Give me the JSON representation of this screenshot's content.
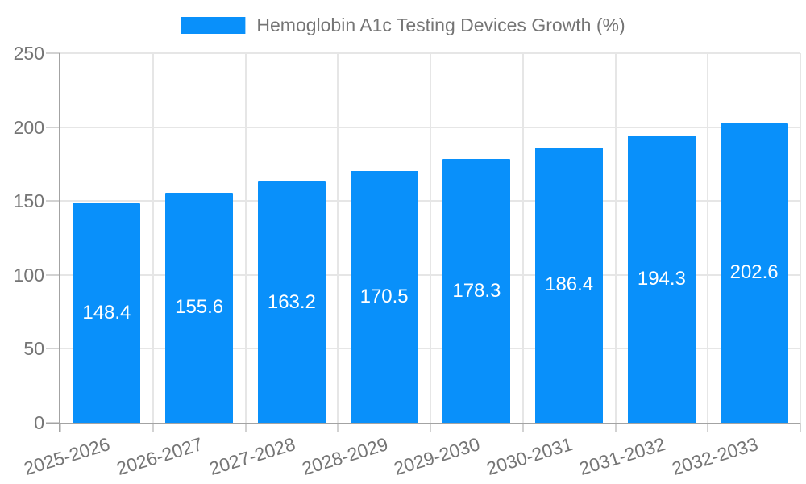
{
  "chart_data": {
    "type": "bar",
    "title": "Hemoglobin A1c Testing Devices Growth (%)",
    "categories": [
      "2025-2026",
      "2026-2027",
      "2027-2028",
      "2028-2029",
      "2029-2030",
      "2030-2031",
      "2031-2032",
      "2032-2033"
    ],
    "values": [
      148.4,
      155.6,
      163.2,
      170.5,
      178.3,
      186.4,
      194.3,
      202.6
    ],
    "value_label_decimals": 1,
    "xlabel": "",
    "ylabel": "",
    "ylim": [
      0,
      250
    ],
    "yticks": [
      0,
      50,
      100,
      150,
      200,
      250
    ],
    "grid": true,
    "legend_position": "top",
    "x_tick_rotation_deg": -17,
    "colors": {
      "bar": "#0990fa",
      "value_label": "#ffffff",
      "axis_text": "#757575",
      "grid_line": "#e6e6e6",
      "axis_border": "#a3a3a3",
      "tick_mark": "#d2d2d2",
      "background": "#ffffff"
    }
  }
}
